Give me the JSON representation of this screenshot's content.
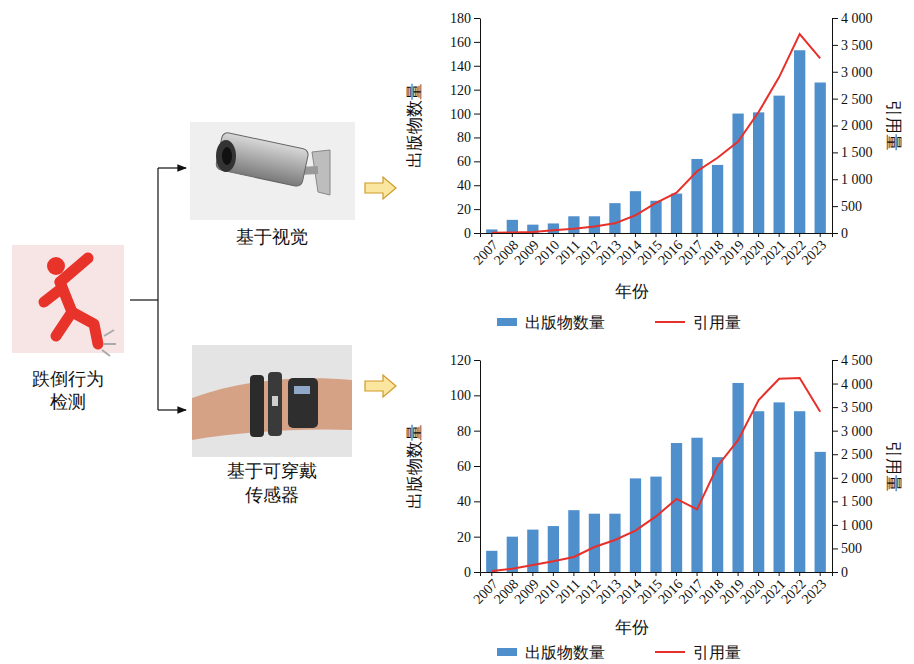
{
  "diagram": {
    "root": {
      "label": "跌倒行为检测"
    },
    "branches": [
      {
        "label": "基于视觉"
      },
      {
        "label": "基于可穿戴传感器"
      }
    ]
  },
  "chart_data": [
    {
      "type": "bar",
      "categories": [
        "2007",
        "2008",
        "2009",
        "2010",
        "2011",
        "2012",
        "2013",
        "2014",
        "2015",
        "2016",
        "2017",
        "2018",
        "2019",
        "2020",
        "2021",
        "2022",
        "2023"
      ],
      "xlabel": "年份",
      "ylabel": "出版物数量",
      "y2label": "引用量",
      "ylim": [
        0,
        180
      ],
      "yticks": [
        0,
        20,
        40,
        60,
        80,
        100,
        120,
        140,
        160,
        180
      ],
      "y2lim": [
        0,
        4000
      ],
      "y2ticks": [
        0,
        500,
        {
          "value": 1000,
          "label": "1 000"
        },
        {
          "value": 1500,
          "label": "1 500"
        },
        {
          "value": 2000,
          "label": "2 000"
        },
        {
          "value": 2500,
          "label": "2 500"
        },
        {
          "value": 3000,
          "label": "3 000"
        },
        {
          "value": 3500,
          "label": "3 500"
        },
        {
          "value": 4000,
          "label": "4 000"
        }
      ],
      "legend": "bottom",
      "series": [
        {
          "name": "出版物数量",
          "type": "bar",
          "color": "#4f8fcc",
          "values": [
            3,
            11,
            7,
            8,
            14,
            14,
            25,
            35,
            27,
            33,
            62,
            57,
            100,
            101,
            115,
            153,
            126
          ]
        },
        {
          "name": "引用量",
          "type": "line",
          "color": "#e8302a",
          "axis": "y2",
          "values": [
            5,
            10,
            20,
            50,
            80,
            120,
            180,
            330,
            560,
            750,
            1150,
            1400,
            1700,
            2250,
            2900,
            3700,
            3250
          ]
        }
      ]
    },
    {
      "type": "bar",
      "categories": [
        "2007",
        "2008",
        "2009",
        "2010",
        "2011",
        "2012",
        "2013",
        "2014",
        "2015",
        "2016",
        "2017",
        "2018",
        "2019",
        "2020",
        "2021",
        "2022",
        "2023"
      ],
      "xlabel": "年份",
      "ylabel": "出版物数量",
      "y2label": "引用量",
      "ylim": [
        0,
        120
      ],
      "yticks": [
        0,
        20,
        40,
        60,
        80,
        100,
        120
      ],
      "y2lim": [
        0,
        4500
      ],
      "y2ticks": [
        0,
        500,
        {
          "value": 1000,
          "label": "1 000"
        },
        {
          "value": 1500,
          "label": "1 500"
        },
        {
          "value": 2000,
          "label": "2 000"
        },
        {
          "value": 2500,
          "label": "2 500"
        },
        {
          "value": 3000,
          "label": "3 000"
        },
        {
          "value": 3500,
          "label": "3 500"
        },
        {
          "value": 4000,
          "label": "4 000"
        },
        {
          "value": 4500,
          "label": "4 500"
        }
      ],
      "legend": "bottom",
      "series": [
        {
          "name": "出版物数量",
          "type": "bar",
          "color": "#4f8fcc",
          "values": [
            12,
            20,
            24,
            26,
            35,
            33,
            33,
            53,
            54,
            73,
            76,
            65,
            107,
            91,
            96,
            91,
            68
          ]
        },
        {
          "name": "引用量",
          "type": "line",
          "color": "#e8302a",
          "axis": "y2",
          "values": [
            20,
            70,
            150,
            230,
            320,
            530,
            680,
            880,
            1180,
            1550,
            1330,
            2250,
            2800,
            3650,
            4100,
            4120,
            3400
          ]
        }
      ]
    }
  ]
}
